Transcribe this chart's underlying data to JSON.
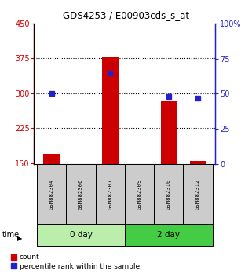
{
  "title": "GDS4253 / E00903cds_s_at",
  "samples": [
    "GSM882304",
    "GSM882306",
    "GSM882307",
    "GSM882309",
    "GSM882310",
    "GSM882312"
  ],
  "red_values": [
    170,
    148,
    380,
    148,
    285,
    155
  ],
  "blue_values": [
    50,
    null,
    65,
    null,
    48,
    47
  ],
  "ylim_left": [
    148,
    450
  ],
  "ylim_right": [
    0,
    100
  ],
  "yticks_left": [
    150,
    225,
    300,
    375,
    450
  ],
  "yticks_right": [
    0,
    25,
    50,
    75,
    100
  ],
  "red_color": "#cc0000",
  "blue_color": "#2222cc",
  "bar_width": 0.55,
  "sample_box_color": "#cccccc",
  "legend_red_label": "count",
  "legend_blue_label": "percentile rank within the sample",
  "time_label": "time",
  "base_value": 148,
  "group_spans": [
    [
      -0.5,
      2.5,
      "0 day",
      "#bbeeaa"
    ],
    [
      2.5,
      5.5,
      "2 day",
      "#44cc44"
    ]
  ],
  "grid_yvals": [
    225,
    300,
    375
  ],
  "hline_450": 450
}
